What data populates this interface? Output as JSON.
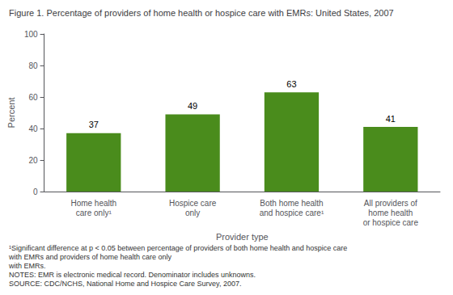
{
  "chart_data": {
    "type": "bar",
    "title": "Figure 1. Percentage of providers of home health or hospice care with EMRs: United States, 2007",
    "categories": [
      "Home health\ncare only¹",
      "Hospice care\nonly",
      "Both home health\nand hospice care¹",
      "All providers of\nhome health\nor hospice care"
    ],
    "values": [
      37,
      49,
      63,
      41
    ],
    "color": "#4a8c1c",
    "ylabel": "Percent",
    "xlabel": "Provider type",
    "ylim": [
      0,
      100
    ],
    "yticks": [
      0,
      20,
      40,
      60,
      80,
      100
    ],
    "grid": false,
    "data_labels": true,
    "annotations": [
      "¹Significant difference at p < 0.05 between percentage of providers of both home health and hospice care with EMRs and providers of home health care only",
      "with EMRs.",
      "NOTES: EMR is electronic medical record. Denominator includes unknowns.",
      "SOURCE: CDC/NCHS, National Home and Hospice Care Survey, 2007."
    ]
  }
}
